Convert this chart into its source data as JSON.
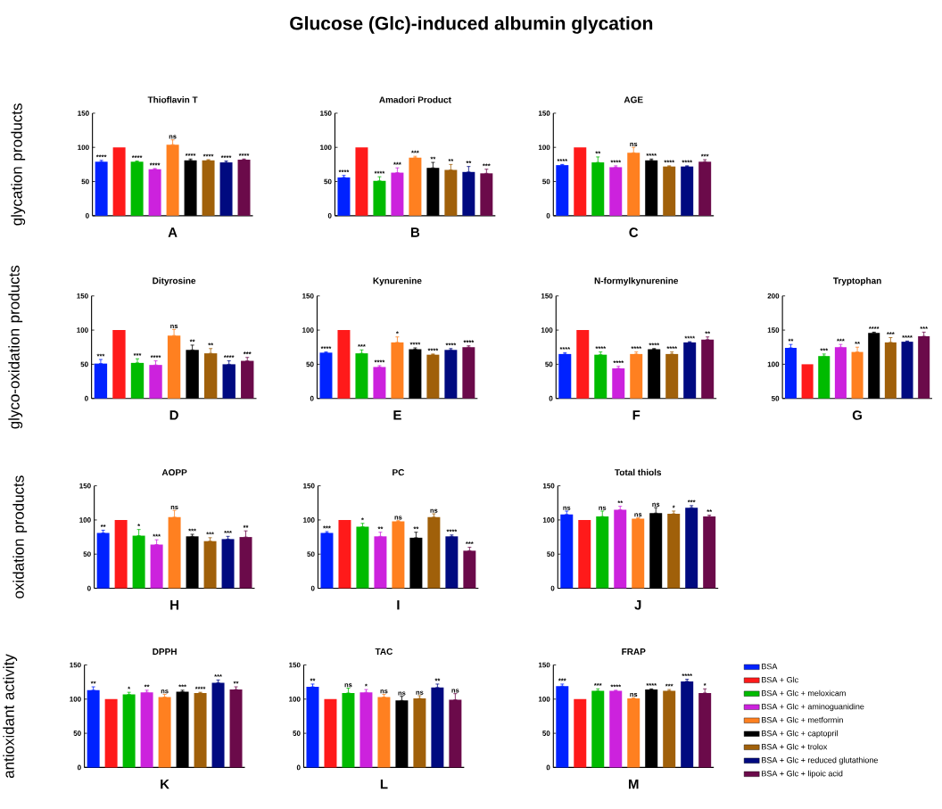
{
  "chart_data": [
    {
      "type": "other",
      "title": "Glucose (Glc)-induced albumin glycation"
    },
    {
      "type": "bar",
      "title": "Thioflavin T",
      "xlabel": "A",
      "ylabel": "glycation products",
      "ylim": [
        0,
        150
      ],
      "yticks": [
        0,
        50,
        100,
        150
      ],
      "categories": [
        null,
        null,
        null,
        null,
        null,
        null,
        null,
        null,
        null
      ],
      "values": [
        79,
        100,
        79,
        68,
        104,
        81,
        81,
        78,
        82
      ],
      "colors": [
        "#0022ff",
        "#ff1a1a",
        "#00bb00",
        "#cc22dd",
        "#ff8020",
        "#000000",
        "#a0600a",
        "#000a80",
        "#6b0a4a"
      ],
      "errors": [
        [
          79,
          81
        ],
        null,
        [
          79,
          80
        ],
        [
          68,
          69
        ],
        [
          104,
          111
        ],
        [
          81,
          83
        ],
        [
          81,
          82
        ],
        [
          78,
          80
        ],
        [
          82,
          83
        ]
      ],
      "annotations": [
        "****",
        null,
        "****",
        "****",
        "ns",
        "****",
        "****",
        "****",
        "****"
      ]
    },
    {
      "type": "bar",
      "title": "Amadori Product",
      "xlabel": "B",
      "ylim": [
        0,
        150
      ],
      "yticks": [
        0,
        50,
        100,
        150
      ],
      "categories": [
        null,
        null,
        null,
        null,
        null,
        null,
        null,
        null,
        null
      ],
      "values": [
        56,
        100,
        51,
        63,
        85,
        70,
        67,
        64,
        62
      ],
      "colors": [
        "#0022ff",
        "#ff1a1a",
        "#00bb00",
        "#cc22dd",
        "#ff8020",
        "#000000",
        "#a0600a",
        "#000a80",
        "#6b0a4a"
      ],
      "errors": [
        [
          56,
          59
        ],
        null,
        [
          51,
          57
        ],
        [
          63,
          70
        ],
        [
          85,
          87
        ],
        [
          70,
          78
        ],
        [
          67,
          75
        ],
        [
          64,
          72
        ],
        [
          62,
          68
        ]
      ],
      "annotations": [
        "****",
        null,
        "****",
        "***",
        "***",
        "**",
        "**",
        "**",
        "***"
      ]
    },
    {
      "type": "bar",
      "title": "AGE",
      "xlabel": "C",
      "ylim": [
        0,
        150
      ],
      "yticks": [
        0,
        50,
        100,
        150
      ],
      "categories": [
        null,
        null,
        null,
        null,
        null,
        null,
        null,
        null,
        null
      ],
      "values": [
        74,
        100,
        78,
        71,
        92,
        81,
        72,
        72,
        79
      ],
      "colors": [
        "#0022ff",
        "#ff1a1a",
        "#00bb00",
        "#cc22dd",
        "#ff8020",
        "#000000",
        "#a0600a",
        "#000a80",
        "#6b0a4a"
      ],
      "errors": [
        [
          74,
          75
        ],
        null,
        [
          78,
          86
        ],
        [
          71,
          73
        ],
        [
          92,
          100
        ],
        [
          81,
          83
        ],
        [
          72,
          73
        ],
        [
          72,
          73
        ],
        [
          79,
          82
        ]
      ],
      "annotations": [
        "****",
        null,
        "**",
        "****",
        "ns",
        "****",
        "****",
        "****",
        "***"
      ]
    },
    {
      "type": "bar",
      "title": "Dityrosine",
      "xlabel": "D",
      "ylabel": "glyco-oxidation products",
      "ylim": [
        0,
        150
      ],
      "yticks": [
        0,
        50,
        100,
        150
      ],
      "categories": [
        null,
        null,
        null,
        null,
        null,
        null,
        null,
        null,
        null
      ],
      "values": [
        51,
        100,
        52,
        49,
        92,
        71,
        66,
        50,
        55
      ],
      "colors": [
        "#0022ff",
        "#ff1a1a",
        "#00bb00",
        "#cc22dd",
        "#ff8020",
        "#000000",
        "#a0600a",
        "#000a80",
        "#6b0a4a"
      ],
      "errors": [
        [
          51,
          57
        ],
        null,
        [
          52,
          58
        ],
        [
          49,
          55
        ],
        [
          92,
          101
        ],
        [
          71,
          78
        ],
        [
          66,
          73
        ],
        [
          50,
          55
        ],
        [
          55,
          60
        ]
      ],
      "annotations": [
        "***",
        null,
        "***",
        "****",
        "ns",
        "**",
        "**",
        "****",
        "***"
      ]
    },
    {
      "type": "bar",
      "title": "Kynurenine",
      "xlabel": "E",
      "ylim": [
        0,
        150
      ],
      "yticks": [
        0,
        50,
        100,
        150
      ],
      "categories": [
        null,
        null,
        null,
        null,
        null,
        null,
        null,
        null,
        null
      ],
      "values": [
        67,
        100,
        66,
        46,
        82,
        72,
        64,
        71,
        75
      ],
      "colors": [
        "#0022ff",
        "#ff1a1a",
        "#00bb00",
        "#cc22dd",
        "#ff8020",
        "#000000",
        "#a0600a",
        "#000a80",
        "#6b0a4a"
      ],
      "errors": [
        [
          67,
          68
        ],
        null,
        [
          66,
          71
        ],
        [
          46,
          48
        ],
        [
          82,
          90
        ],
        [
          72,
          74
        ],
        [
          64,
          65
        ],
        [
          71,
          73
        ],
        [
          75,
          77
        ]
      ],
      "annotations": [
        "****",
        null,
        "***",
        "****",
        "*",
        "****",
        "****",
        "****",
        "****"
      ]
    },
    {
      "type": "bar",
      "title": "N-formylkynurenine",
      "xlabel": "F",
      "ylim": [
        0,
        150
      ],
      "yticks": [
        0,
        50,
        100,
        150
      ],
      "categories": [
        null,
        null,
        null,
        null,
        null,
        null,
        null,
        null,
        null
      ],
      "values": [
        65,
        100,
        64,
        44,
        65,
        72,
        65,
        82,
        86
      ],
      "colors": [
        "#0022ff",
        "#ff1a1a",
        "#00bb00",
        "#cc22dd",
        "#ff8020",
        "#000000",
        "#a0600a",
        "#000a80",
        "#6b0a4a"
      ],
      "errors": [
        [
          65,
          67
        ],
        null,
        [
          64,
          68
        ],
        [
          44,
          47
        ],
        [
          65,
          68
        ],
        [
          72,
          73
        ],
        [
          65,
          68
        ],
        [
          82,
          83
        ],
        [
          86,
          90
        ]
      ],
      "annotations": [
        "****",
        null,
        "****",
        "****",
        "****",
        "****",
        "****",
        "****",
        "**"
      ]
    },
    {
      "type": "bar",
      "title": "Tryptophan",
      "xlabel": "G",
      "ylim": [
        50,
        200
      ],
      "yticks": [
        50,
        100,
        150,
        200
      ],
      "categories": [
        null,
        null,
        null,
        null,
        null,
        null,
        null,
        null,
        null
      ],
      "values": [
        124,
        100,
        112,
        125,
        118,
        146,
        132,
        133,
        141
      ],
      "colors": [
        "#0022ff",
        "#ff1a1a",
        "#00bb00",
        "#cc22dd",
        "#ff8020",
        "#000000",
        "#a0600a",
        "#000a80",
        "#6b0a4a"
      ],
      "errors": [
        [
          124,
          129
        ],
        null,
        [
          112,
          115
        ],
        [
          125,
          129
        ],
        [
          118,
          125
        ],
        [
          146,
          147
        ],
        [
          132,
          139
        ],
        [
          133,
          134
        ],
        [
          141,
          147
        ]
      ],
      "annotations": [
        "**",
        null,
        "***",
        "***",
        "**",
        "****",
        "***",
        "****",
        "***"
      ]
    },
    {
      "type": "bar",
      "title": "AOPP",
      "xlabel": "H",
      "ylabel": "oxidation products",
      "ylim": [
        0,
        150
      ],
      "yticks": [
        0,
        50,
        100,
        150
      ],
      "categories": [
        null,
        null,
        null,
        null,
        null,
        null,
        null,
        null,
        null
      ],
      "values": [
        81,
        100,
        77,
        64,
        104,
        76,
        69,
        72,
        75
      ],
      "colors": [
        "#0022ff",
        "#ff1a1a",
        "#00bb00",
        "#cc22dd",
        "#ff8020",
        "#000000",
        "#a0600a",
        "#000a80",
        "#6b0a4a"
      ],
      "errors": [
        [
          81,
          85
        ],
        null,
        [
          77,
          86
        ],
        [
          64,
          71
        ],
        [
          104,
          114
        ],
        [
          76,
          79
        ],
        [
          69,
          74
        ],
        [
          72,
          76
        ],
        [
          75,
          84
        ]
      ],
      "annotations": [
        "**",
        null,
        "*",
        "***",
        "ns",
        "***",
        "***",
        "***",
        "**"
      ]
    },
    {
      "type": "bar",
      "title": "PC",
      "xlabel": "I",
      "ylim": [
        0,
        150
      ],
      "yticks": [
        0,
        50,
        100,
        150
      ],
      "categories": [
        null,
        null,
        null,
        null,
        null,
        null,
        null,
        null,
        null
      ],
      "values": [
        81,
        100,
        90,
        76,
        98,
        74,
        104,
        76,
        55
      ],
      "colors": [
        "#0022ff",
        "#ff1a1a",
        "#00bb00",
        "#cc22dd",
        "#ff8020",
        "#000000",
        "#a0600a",
        "#000a80",
        "#6b0a4a"
      ],
      "errors": [
        [
          81,
          83
        ],
        null,
        [
          90,
          95
        ],
        [
          76,
          82
        ],
        [
          98,
          99
        ],
        [
          74,
          82
        ],
        [
          104,
          109
        ],
        [
          76,
          78
        ],
        [
          55,
          60
        ]
      ],
      "annotations": [
        "***",
        null,
        "*",
        "**",
        "ns",
        "**",
        "ns",
        "****",
        "***"
      ]
    },
    {
      "type": "bar",
      "title": "Total thiols",
      "xlabel": "J",
      "ylim": [
        0,
        150
      ],
      "yticks": [
        0,
        50,
        100,
        150
      ],
      "categories": [
        null,
        null,
        null,
        null,
        null,
        null,
        null,
        null,
        null
      ],
      "values": [
        108,
        100,
        105,
        115,
        102,
        110,
        109,
        118,
        105
      ],
      "colors": [
        "#0022ff",
        "#ff1a1a",
        "#00bb00",
        "#cc22dd",
        "#ff8020",
        "#000000",
        "#a0600a",
        "#000a80",
        "#6b0a4a"
      ],
      "errors": [
        [
          108,
          113
        ],
        null,
        [
          105,
          113
        ],
        [
          115,
          120
        ],
        [
          102,
          103
        ],
        [
          110,
          118
        ],
        [
          109,
          113
        ],
        [
          118,
          121
        ],
        [
          105,
          107
        ]
      ],
      "annotations": [
        "ns",
        null,
        "ns",
        "**",
        "ns",
        "ns",
        "*",
        "***",
        "**"
      ]
    },
    {
      "type": "bar",
      "title": "DPPH",
      "xlabel": "K",
      "ylabel": "antioxidant activity",
      "ylim": [
        0,
        150
      ],
      "yticks": [
        0,
        50,
        100,
        150
      ],
      "categories": [
        null,
        null,
        null,
        null,
        null,
        null,
        null,
        null,
        null
      ],
      "values": [
        113,
        100,
        107,
        110,
        103,
        111,
        109,
        124,
        114
      ],
      "colors": [
        "#0022ff",
        "#ff1a1a",
        "#00bb00",
        "#cc22dd",
        "#ff8020",
        "#000000",
        "#a0600a",
        "#000a80",
        "#6b0a4a"
      ],
      "errors": [
        [
          113,
          118
        ],
        null,
        [
          107,
          110
        ],
        [
          110,
          113
        ],
        [
          103,
          107
        ],
        [
          111,
          113
        ],
        [
          109,
          110
        ],
        [
          124,
          128
        ],
        [
          114,
          118
        ]
      ],
      "annotations": [
        "**",
        null,
        "*",
        "**",
        "ns",
        "***",
        "****",
        "***",
        "**"
      ]
    },
    {
      "type": "bar",
      "title": "TAC",
      "xlabel": "L",
      "ylim": [
        0,
        150
      ],
      "yticks": [
        0,
        50,
        100,
        150
      ],
      "categories": [
        null,
        null,
        null,
        null,
        null,
        null,
        null,
        null,
        null
      ],
      "values": [
        118,
        100,
        109,
        110,
        103,
        98,
        101,
        117,
        99
      ],
      "colors": [
        "#0022ff",
        "#ff1a1a",
        "#00bb00",
        "#cc22dd",
        "#ff8020",
        "#000000",
        "#a0600a",
        "#000a80",
        "#6b0a4a"
      ],
      "errors": [
        [
          118,
          122
        ],
        null,
        [
          109,
          116
        ],
        [
          110,
          114
        ],
        [
          103,
          107
        ],
        [
          98,
          104
        ],
        [
          101,
          105
        ],
        [
          117,
          122
        ],
        [
          99,
          108
        ]
      ],
      "annotations": [
        "**",
        null,
        "ns",
        "*",
        "ns",
        "ns",
        "ns",
        "**",
        "ns"
      ]
    },
    {
      "type": "bar",
      "title": "FRAP",
      "xlabel": "M",
      "ylim": [
        0,
        150
      ],
      "yticks": [
        0,
        50,
        100,
        150
      ],
      "legend": "right",
      "categories": [
        null
      ],
      "series": [
        {
          "name": "BSA",
          "color": "#0022ff",
          "values": [
            119
          ],
          "errors": [
            [
              119,
              122
            ]
          ]
        },
        {
          "name": "BSA + Glc",
          "color": "#ff1a1a",
          "values": [
            100
          ],
          "errors": [
            null
          ]
        },
        {
          "name": "BSA + Glc + meloxicam",
          "color": "#00bb00",
          "values": [
            112
          ],
          "errors": [
            [
              112,
              115
            ]
          ]
        },
        {
          "name": "BSA + Glc + aminoguanidine",
          "color": "#cc22dd",
          "values": [
            112
          ],
          "errors": [
            [
              112,
              113
            ]
          ]
        },
        {
          "name": "BSA + Glc + metformin",
          "color": "#ff8020",
          "values": [
            101
          ],
          "errors": [
            [
              101,
              102
            ]
          ]
        },
        {
          "name": "BSA + Glc + captopril",
          "color": "#000000",
          "values": [
            114
          ],
          "errors": [
            [
              114,
              115
            ]
          ]
        },
        {
          "name": "BSA + Glc + trolox",
          "color": "#a0600a",
          "values": [
            112
          ],
          "errors": [
            [
              112,
              114
            ]
          ]
        },
        {
          "name": "BSA + Glc + reduced glutathione",
          "color": "#000a80",
          "values": [
            126
          ],
          "errors": [
            [
              126,
              129
            ]
          ]
        },
        {
          "name": "BSA + Glc + lipoic acid",
          "color": "#6b0a4a",
          "values": [
            109
          ],
          "errors": [
            [
              109,
              115
            ]
          ]
        }
      ],
      "annotations": [
        "***",
        null,
        "***",
        "****",
        "ns",
        "****",
        "***",
        "****",
        "*"
      ]
    }
  ]
}
